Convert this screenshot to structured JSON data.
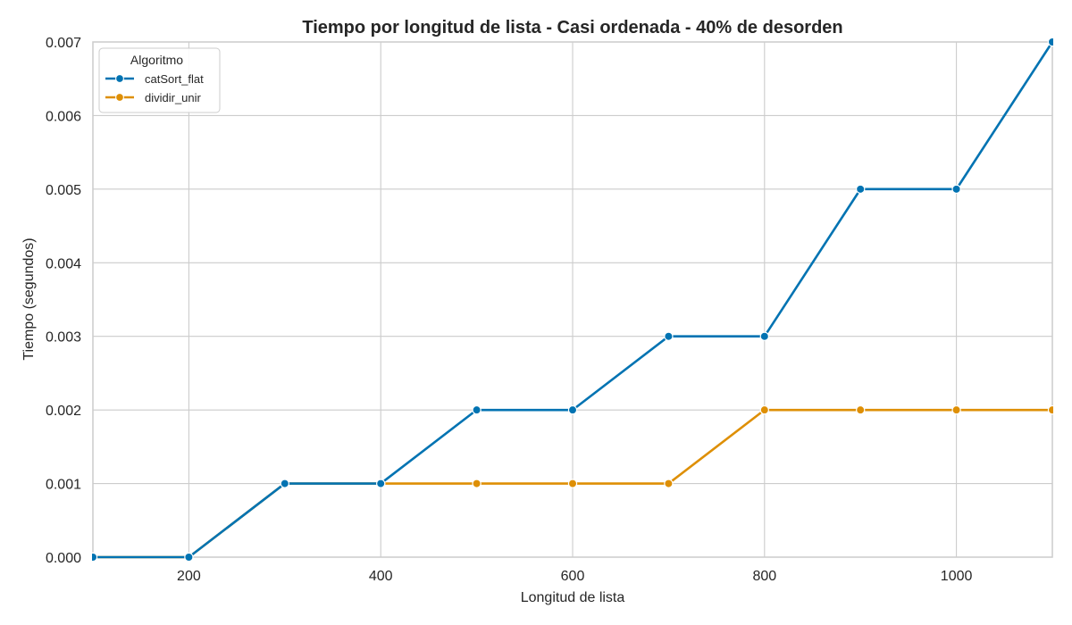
{
  "chart_data": {
    "type": "line",
    "title": "Tiempo por longitud de lista - Casi ordenada - 40% de desorden",
    "xlabel": "Longitud de lista",
    "ylabel": "Tiempo (segundos)",
    "xlim": [
      100,
      1100
    ],
    "ylim": [
      0,
      0.007
    ],
    "xticks": [
      200,
      400,
      600,
      800,
      1000
    ],
    "yticks": [
      0.0,
      0.001,
      0.002,
      0.003,
      0.004,
      0.005,
      0.006,
      0.007
    ],
    "ytick_labels": [
      "0.000",
      "0.001",
      "0.002",
      "0.003",
      "0.004",
      "0.005",
      "0.006",
      "0.007"
    ],
    "grid": true,
    "legend": {
      "title": "Algoritmo",
      "position": "top-left"
    },
    "x": [
      100,
      200,
      300,
      400,
      500,
      600,
      700,
      800,
      900,
      1000,
      1100
    ],
    "series": [
      {
        "name": "catSort_flat",
        "color": "#0173b2",
        "values": [
          0,
          0,
          0.001,
          0.001,
          0.002,
          0.002,
          0.003,
          0.003,
          0.005,
          0.005,
          0.007
        ]
      },
      {
        "name": "dividir_unir",
        "color": "#de8f05",
        "values": [
          0,
          0,
          0.001,
          0.001,
          0.001,
          0.001,
          0.001,
          0.002,
          0.002,
          0.002,
          0.002
        ]
      }
    ]
  }
}
